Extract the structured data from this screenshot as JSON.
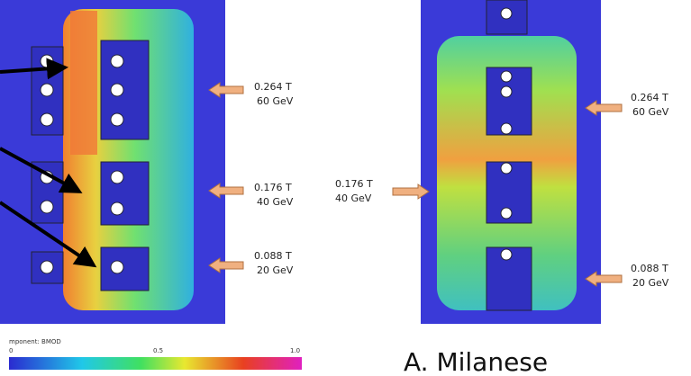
{
  "left_magnet": {
    "labels": [
      {
        "field": "0.264 T",
        "energy": "60 GeV"
      },
      {
        "field": "0.176 T",
        "energy": "40 GeV"
      },
      {
        "field": "0.088 T",
        "energy": "20 GeV"
      }
    ]
  },
  "right_magnet": {
    "labels": [
      {
        "field": "0.264 T",
        "energy": "60 GeV"
      },
      {
        "field": "0.176 T",
        "energy": "40 GeV"
      },
      {
        "field": "0.088 T",
        "energy": "20 GeV"
      }
    ]
  },
  "colorbar": {
    "title": "mponent: BMOD",
    "ticks": [
      "0",
      "0.5",
      "1.0"
    ]
  },
  "credit": "A. Milanese"
}
